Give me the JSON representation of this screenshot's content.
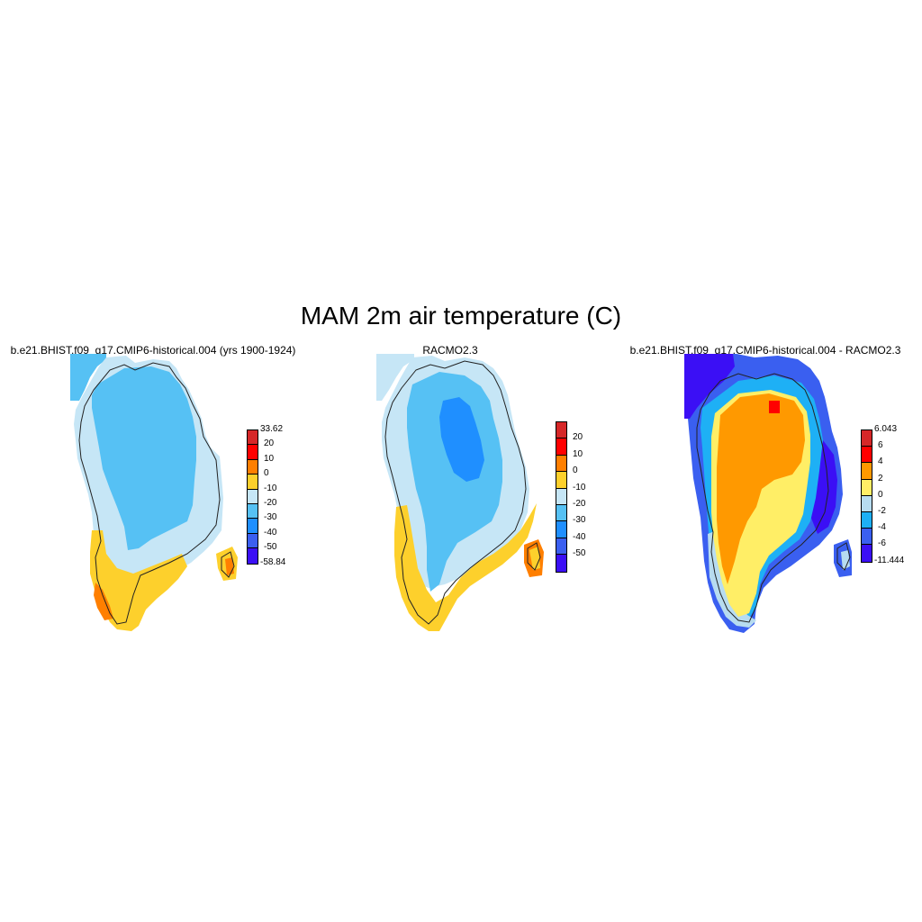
{
  "main_title": "MAM 2m air temperature (C)",
  "panels": [
    {
      "title": "b.e21.BHIST.f09_g17.CMIP6-historical.004 (yrs 1900-1924)",
      "colorbar": {
        "colors": [
          "#d62728",
          "#ff0000",
          "#ff7f00",
          "#fdd02c",
          "#c6e6f6",
          "#56c1f4",
          "#1f8fff",
          "#3b5ff0",
          "#3b0ff5"
        ],
        "labels": [
          "33.62",
          "20",
          "10",
          "0",
          "-10",
          "-20",
          "-30",
          "-40",
          "-50",
          "-58.84"
        ]
      }
    },
    {
      "title": "RACMO2.3",
      "colorbar": {
        "colors": [
          "#d62728",
          "#ff0000",
          "#ff7f00",
          "#fdd02c",
          "#c6e6f6",
          "#56c1f4",
          "#1f8fff",
          "#3b5ff0",
          "#3b0ff5"
        ],
        "labels": [
          "20",
          "10",
          "0",
          "-10",
          "-20",
          "-30",
          "-40",
          "-50"
        ]
      }
    },
    {
      "title": "b.e21.BHIST.f09_g17.CMIP6-historical.004 - RACMO2.3",
      "colorbar": {
        "colors": [
          "#d62728",
          "#ff0000",
          "#ff9900",
          "#ffee66",
          "#b7dcf0",
          "#1eb0f5",
          "#3a5ff0",
          "#3b0ff5"
        ],
        "labels": [
          "6.043",
          "6",
          "4",
          "2",
          "0",
          "-2",
          "-4",
          "-6",
          "-11.444"
        ]
      }
    }
  ]
}
